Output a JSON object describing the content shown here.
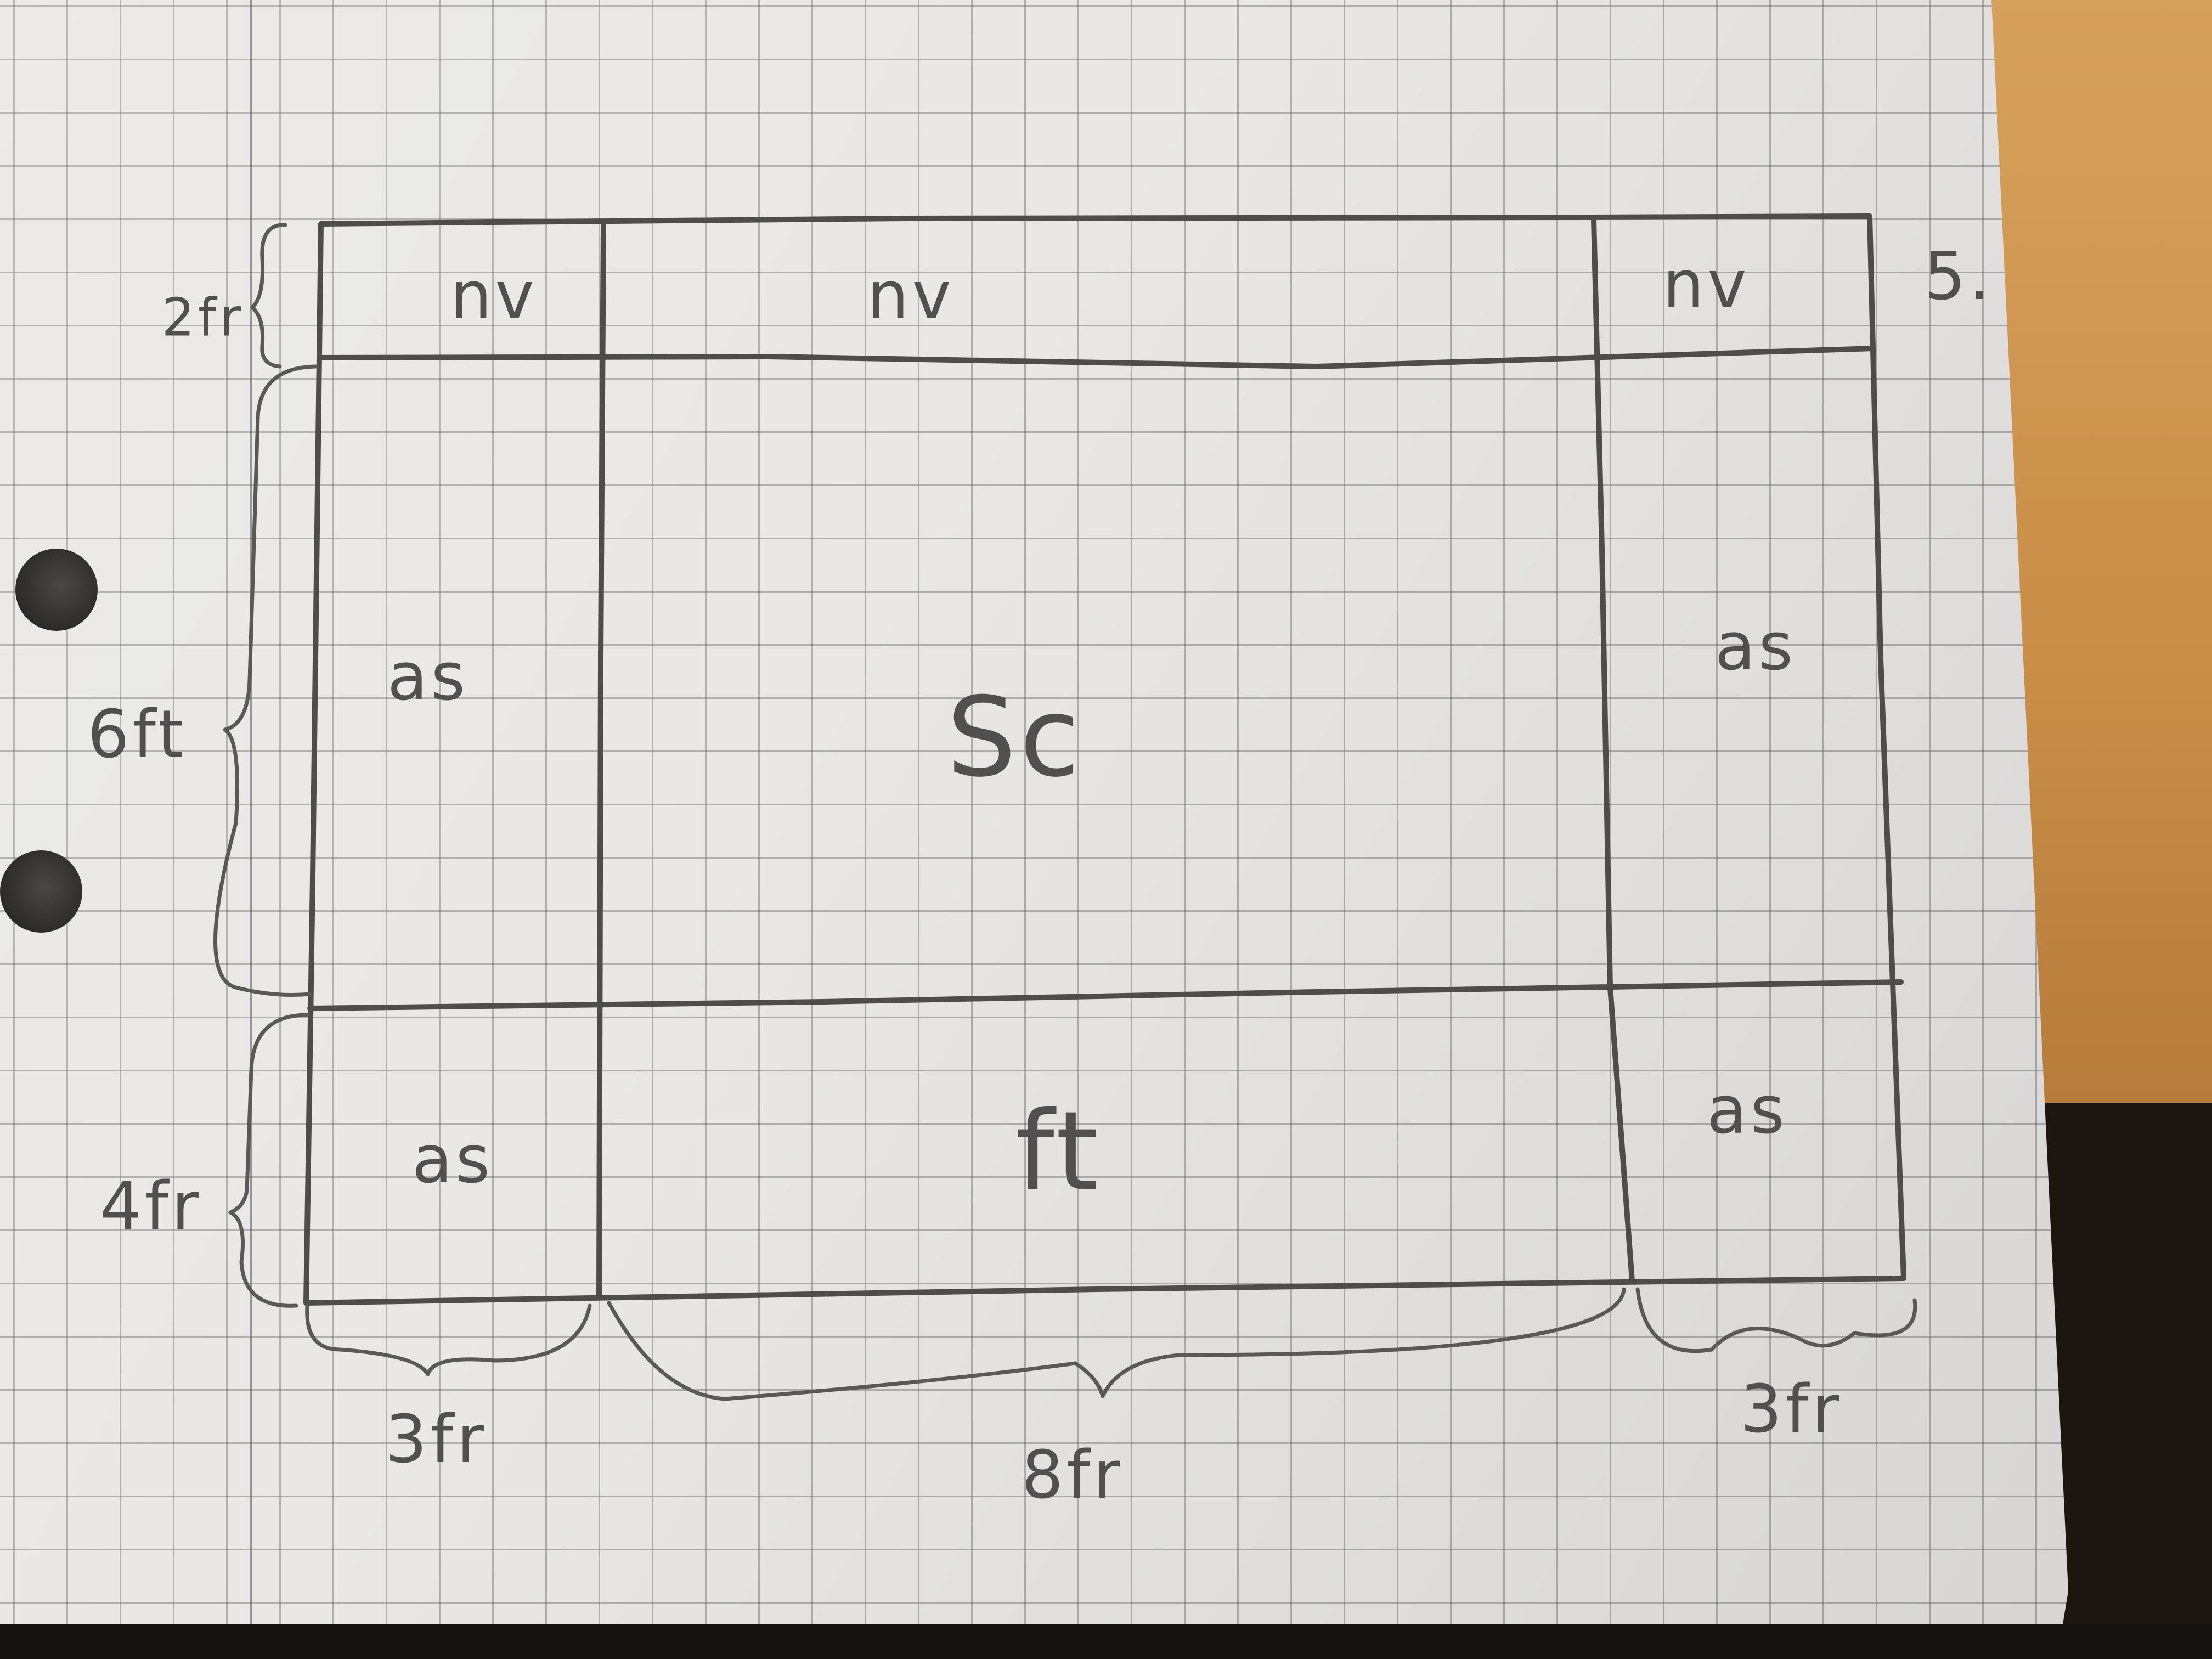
{
  "diagram": {
    "header_cells": [
      "nv",
      "nv",
      "nv"
    ],
    "left_side_cells": [
      "as",
      "as"
    ],
    "right_side_cells": [
      "as",
      "as"
    ],
    "main_cell": "Sc",
    "footer_cell": "ft",
    "row_sizes": [
      "2fr",
      "6ft",
      "4fr"
    ],
    "column_sizes": [
      "3fr",
      "8fr",
      "3fr"
    ],
    "page_number": "5."
  }
}
